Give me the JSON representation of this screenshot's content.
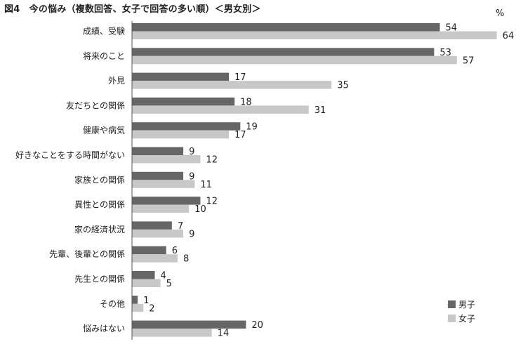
{
  "title": "図4　今の悩み（複数回答、女子で回答の多い順）＜男女別＞",
  "unit": "%",
  "chart_data": {
    "type": "bar",
    "orientation": "horizontal",
    "title": "図4　今の悩み（複数回答、女子で回答の多い順）＜男女別＞",
    "unit": "%",
    "categories": [
      "成績、受験",
      "将来のこと",
      "外見",
      "友だちとの関係",
      "健康や病気",
      "好きなことをする時間がない",
      "家族との関係",
      "異性との関係",
      "家の経済状況",
      "先輩、後輩との関係",
      "先生との関係",
      "その他",
      "悩みはない"
    ],
    "series": [
      {
        "name": "男子",
        "color": "#666666",
        "values": [
          54,
          53,
          17,
          18,
          19,
          9,
          9,
          12,
          7,
          6,
          4,
          1,
          20
        ]
      },
      {
        "name": "女子",
        "color": "#c8c8c8",
        "values": [
          64,
          57,
          35,
          31,
          17,
          12,
          11,
          10,
          9,
          8,
          5,
          2,
          14
        ]
      }
    ],
    "xlim": [
      0,
      64
    ],
    "grid": false,
    "legend_position": "bottom-right"
  }
}
